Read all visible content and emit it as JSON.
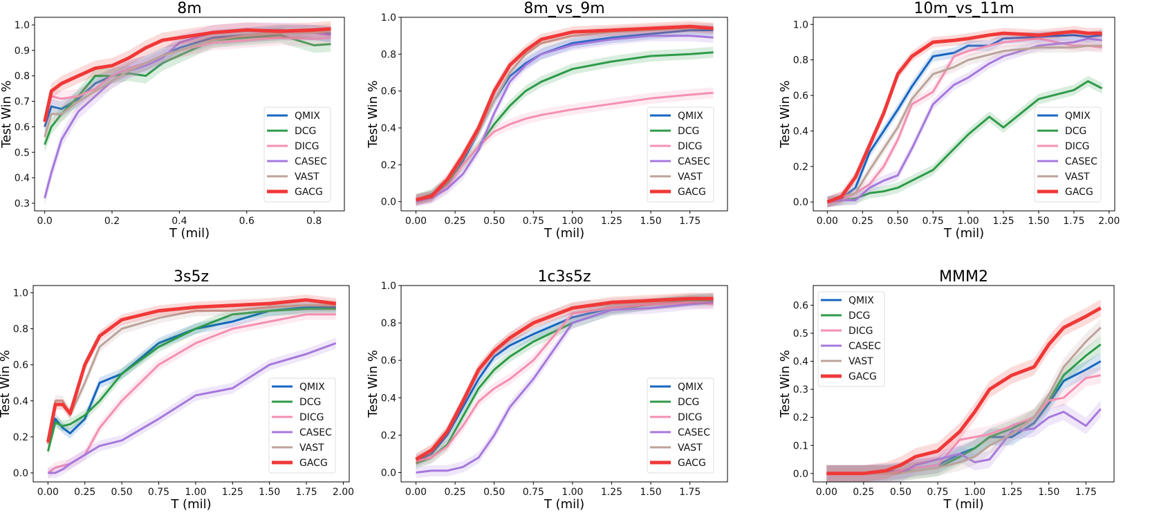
{
  "series_colors": {
    "QMIX": "#1565c0",
    "DCG": "#2e9a48",
    "DICG": "#f48fb1",
    "CASEC": "#a578dc",
    "VAST": "#bca39a",
    "GACG": "#f03838"
  },
  "chart_data": [
    {
      "type": "line",
      "title": "8m",
      "xlabel": "T (mil)",
      "ylabel": "Test Win %",
      "xlim": [
        -0.03,
        0.89
      ],
      "ylim": [
        0.27,
        1.03
      ],
      "xticks": [
        0,
        0.2,
        0.4,
        0.6,
        0.8
      ],
      "xtick_labels": [
        "0.0",
        "0.2",
        "0.4",
        "0.6",
        "0.8"
      ],
      "yticks": [
        0.3,
        0.4,
        0.5,
        0.6,
        0.7,
        0.8,
        0.9,
        1.0
      ],
      "ytick_labels": [
        "0.3",
        "0.4",
        "0.5",
        "0.6",
        "0.7",
        "0.8",
        "0.9",
        "1.0"
      ],
      "legend": "lower-right",
      "x": [
        0,
        0.02,
        0.05,
        0.1,
        0.15,
        0.2,
        0.25,
        0.3,
        0.35,
        0.4,
        0.5,
        0.6,
        0.7,
        0.8,
        0.85
      ],
      "series": [
        {
          "name": "QMIX",
          "values": [
            0.6,
            0.68,
            0.67,
            0.71,
            0.77,
            0.8,
            0.83,
            0.85,
            0.88,
            0.91,
            0.95,
            0.96,
            0.97,
            0.97,
            0.965
          ]
        },
        {
          "name": "DCG",
          "values": [
            0.53,
            0.6,
            0.65,
            0.72,
            0.8,
            0.8,
            0.81,
            0.8,
            0.85,
            0.88,
            0.94,
            0.95,
            0.96,
            0.92,
            0.925
          ]
        },
        {
          "name": "DICG",
          "values": [
            0.62,
            0.72,
            0.71,
            0.72,
            0.75,
            0.8,
            0.83,
            0.85,
            0.88,
            0.9,
            0.93,
            0.94,
            0.95,
            0.945,
            0.95
          ]
        },
        {
          "name": "CASEC",
          "values": [
            0.32,
            0.42,
            0.55,
            0.66,
            0.72,
            0.78,
            0.82,
            0.84,
            0.87,
            0.93,
            0.97,
            0.98,
            0.98,
            0.97,
            0.96
          ]
        },
        {
          "name": "VAST",
          "values": [
            0.56,
            0.65,
            0.65,
            0.7,
            0.74,
            0.78,
            0.82,
            0.85,
            0.88,
            0.9,
            0.94,
            0.96,
            0.97,
            0.97,
            0.975
          ]
        },
        {
          "name": "GACG",
          "values": [
            0.62,
            0.74,
            0.77,
            0.8,
            0.83,
            0.84,
            0.87,
            0.91,
            0.94,
            0.95,
            0.97,
            0.98,
            0.975,
            0.98,
            0.985
          ]
        }
      ]
    },
    {
      "type": "line",
      "title": "8m_vs_9m",
      "xlabel": "T (mil)",
      "ylabel": "Test Win %",
      "xlim": [
        -0.095,
        1.99
      ],
      "ylim": [
        -0.05,
        1.0
      ],
      "xticks": [
        0,
        0.25,
        0.5,
        0.75,
        1.0,
        1.25,
        1.5,
        1.75
      ],
      "xtick_labels": [
        "0.00",
        "0.25",
        "0.50",
        "0.75",
        "1.00",
        "1.25",
        "1.50",
        "1.75"
      ],
      "yticks": [
        0,
        0.2,
        0.4,
        0.6,
        0.8,
        1.0
      ],
      "ytick_labels": [
        "0.0",
        "0.2",
        "0.4",
        "0.6",
        "0.8",
        "1.0"
      ],
      "legend": "lower-right",
      "x": [
        0,
        0.1,
        0.2,
        0.3,
        0.4,
        0.5,
        0.6,
        0.7,
        0.8,
        1.0,
        1.25,
        1.5,
        1.75,
        1.9
      ],
      "series": [
        {
          "name": "QMIX",
          "values": [
            0.01,
            0.03,
            0.1,
            0.22,
            0.38,
            0.55,
            0.68,
            0.75,
            0.8,
            0.86,
            0.89,
            0.91,
            0.93,
            0.93
          ]
        },
        {
          "name": "DCG",
          "values": [
            0.01,
            0.04,
            0.1,
            0.2,
            0.3,
            0.42,
            0.52,
            0.6,
            0.65,
            0.72,
            0.76,
            0.79,
            0.8,
            0.81
          ]
        },
        {
          "name": "DICG",
          "values": [
            0.01,
            0.02,
            0.08,
            0.2,
            0.3,
            0.38,
            0.42,
            0.45,
            0.47,
            0.5,
            0.53,
            0.56,
            0.58,
            0.59
          ]
        },
        {
          "name": "CASEC",
          "values": [
            0.0,
            0.02,
            0.07,
            0.15,
            0.28,
            0.48,
            0.65,
            0.74,
            0.8,
            0.85,
            0.88,
            0.9,
            0.9,
            0.89
          ]
        },
        {
          "name": "VAST",
          "values": [
            0.01,
            0.03,
            0.11,
            0.24,
            0.38,
            0.55,
            0.7,
            0.8,
            0.86,
            0.9,
            0.92,
            0.93,
            0.94,
            0.94
          ]
        },
        {
          "name": "GACG",
          "values": [
            0.01,
            0.03,
            0.12,
            0.25,
            0.4,
            0.6,
            0.74,
            0.82,
            0.88,
            0.92,
            0.93,
            0.94,
            0.95,
            0.94
          ]
        }
      ]
    },
    {
      "type": "line",
      "title": "10m_vs_11m",
      "xlabel": "T (mil)",
      "ylabel": "Test Win %",
      "xlim": [
        -0.1,
        2.04
      ],
      "ylim": [
        -0.05,
        1.04
      ],
      "xticks": [
        0,
        0.25,
        0.5,
        0.75,
        1.0,
        1.25,
        1.5,
        1.75,
        2.0
      ],
      "xtick_labels": [
        "0.00",
        "0.25",
        "0.50",
        "0.75",
        "1.00",
        "1.25",
        "1.50",
        "1.75",
        "2.00"
      ],
      "yticks": [
        0,
        0.2,
        0.4,
        0.6,
        0.8,
        1.0
      ],
      "ytick_labels": [
        "0.0",
        "0.2",
        "0.4",
        "0.6",
        "0.8",
        "1.0"
      ],
      "legend": "lower-right",
      "x": [
        0,
        0.1,
        0.2,
        0.3,
        0.4,
        0.5,
        0.6,
        0.75,
        0.9,
        1.0,
        1.15,
        1.25,
        1.5,
        1.75,
        1.85,
        1.95
      ],
      "series": [
        {
          "name": "QMIX",
          "values": [
            0,
            0.02,
            0.08,
            0.28,
            0.4,
            0.52,
            0.65,
            0.82,
            0.84,
            0.88,
            0.88,
            0.92,
            0.93,
            0.94,
            0.93,
            0.94
          ]
        },
        {
          "name": "DCG",
          "values": [
            0,
            0.01,
            0.02,
            0.05,
            0.06,
            0.08,
            0.12,
            0.18,
            0.3,
            0.38,
            0.48,
            0.42,
            0.58,
            0.63,
            0.68,
            0.64
          ]
        },
        {
          "name": "DICG",
          "values": [
            0,
            0.01,
            0.05,
            0.1,
            0.2,
            0.35,
            0.55,
            0.62,
            0.82,
            0.85,
            0.88,
            0.9,
            0.92,
            0.88,
            0.88,
            0.87
          ]
        },
        {
          "name": "CASEC",
          "values": [
            0,
            0.01,
            0.01,
            0.08,
            0.12,
            0.15,
            0.3,
            0.55,
            0.66,
            0.7,
            0.78,
            0.82,
            0.88,
            0.9,
            0.92,
            0.91
          ]
        },
        {
          "name": "VAST",
          "values": [
            0,
            0.03,
            0.05,
            0.18,
            0.3,
            0.42,
            0.58,
            0.72,
            0.76,
            0.8,
            0.83,
            0.85,
            0.87,
            0.87,
            0.88,
            0.88
          ]
        },
        {
          "name": "GACG",
          "values": [
            0,
            0.03,
            0.14,
            0.32,
            0.5,
            0.72,
            0.82,
            0.9,
            0.91,
            0.92,
            0.94,
            0.95,
            0.94,
            0.96,
            0.95,
            0.95
          ]
        }
      ]
    },
    {
      "type": "line",
      "title": "3s5z",
      "xlabel": "T (mil)",
      "ylabel": "Test Win %",
      "xlim": [
        -0.1,
        2.04
      ],
      "ylim": [
        -0.05,
        1.04
      ],
      "xticks": [
        0,
        0.25,
        0.5,
        0.75,
        1.0,
        1.25,
        1.5,
        1.75,
        2.0
      ],
      "xtick_labels": [
        "0.00",
        "0.25",
        "0.50",
        "0.75",
        "1.00",
        "1.25",
        "1.50",
        "1.75",
        "2.00"
      ],
      "yticks": [
        0,
        0.2,
        0.4,
        0.6,
        0.8,
        1.0
      ],
      "ytick_labels": [
        "0.0",
        "0.2",
        "0.4",
        "0.6",
        "0.8",
        "1.0"
      ],
      "legend": "lower-right",
      "x": [
        0,
        0.05,
        0.1,
        0.15,
        0.25,
        0.35,
        0.5,
        0.75,
        1.0,
        1.25,
        1.5,
        1.75,
        1.95
      ],
      "series": [
        {
          "name": "QMIX",
          "values": [
            0.17,
            0.3,
            0.25,
            0.22,
            0.3,
            0.5,
            0.55,
            0.72,
            0.8,
            0.84,
            0.9,
            0.92,
            0.92
          ]
        },
        {
          "name": "DCG",
          "values": [
            0.12,
            0.28,
            0.26,
            0.27,
            0.32,
            0.4,
            0.55,
            0.7,
            0.8,
            0.88,
            0.9,
            0.91,
            0.91
          ]
        },
        {
          "name": "DICG",
          "values": [
            0.0,
            0.03,
            0.04,
            0.05,
            0.1,
            0.25,
            0.4,
            0.6,
            0.72,
            0.8,
            0.84,
            0.88,
            0.88
          ]
        },
        {
          "name": "CASEC",
          "values": [
            0.0,
            0.0,
            0.02,
            0.05,
            0.1,
            0.15,
            0.18,
            0.3,
            0.43,
            0.47,
            0.6,
            0.66,
            0.72
          ]
        },
        {
          "name": "VAST",
          "values": [
            0.16,
            0.4,
            0.4,
            0.32,
            0.5,
            0.7,
            0.8,
            0.86,
            0.9,
            0.9,
            0.92,
            0.93,
            0.93
          ]
        },
        {
          "name": "GACG",
          "values": [
            0.17,
            0.38,
            0.38,
            0.33,
            0.6,
            0.76,
            0.85,
            0.9,
            0.92,
            0.93,
            0.94,
            0.96,
            0.94
          ]
        }
      ]
    },
    {
      "type": "line",
      "title": "1c3s5z",
      "xlabel": "T (mil)",
      "ylabel": "Test Win %",
      "xlim": [
        -0.095,
        1.99
      ],
      "ylim": [
        -0.05,
        1.0
      ],
      "xticks": [
        0,
        0.25,
        0.5,
        0.75,
        1.0,
        1.25,
        1.5,
        1.75
      ],
      "xtick_labels": [
        "0.00",
        "0.25",
        "0.50",
        "0.75",
        "1.00",
        "1.25",
        "1.50",
        "1.75"
      ],
      "yticks": [
        0,
        0.2,
        0.4,
        0.6,
        0.8,
        1.0
      ],
      "ytick_labels": [
        "0.0",
        "0.2",
        "0.4",
        "0.6",
        "0.8",
        "1.0"
      ],
      "legend": "lower-right",
      "x": [
        0,
        0.1,
        0.2,
        0.3,
        0.4,
        0.5,
        0.6,
        0.75,
        1.0,
        1.25,
        1.5,
        1.75,
        1.9
      ],
      "series": [
        {
          "name": "QMIX",
          "values": [
            0.06,
            0.1,
            0.2,
            0.35,
            0.5,
            0.62,
            0.68,
            0.74,
            0.83,
            0.88,
            0.9,
            0.92,
            0.93
          ]
        },
        {
          "name": "DCG",
          "values": [
            0.05,
            0.08,
            0.15,
            0.3,
            0.45,
            0.55,
            0.62,
            0.7,
            0.8,
            0.87,
            0.9,
            0.92,
            0.92
          ]
        },
        {
          "name": "DICG",
          "values": [
            0.06,
            0.08,
            0.14,
            0.25,
            0.38,
            0.45,
            0.5,
            0.6,
            0.85,
            0.88,
            0.9,
            0.91,
            0.9
          ]
        },
        {
          "name": "CASEC",
          "values": [
            0.0,
            0.01,
            0.01,
            0.03,
            0.08,
            0.2,
            0.35,
            0.5,
            0.8,
            0.87,
            0.88,
            0.9,
            0.91
          ]
        },
        {
          "name": "VAST",
          "values": [
            0.07,
            0.12,
            0.22,
            0.38,
            0.55,
            0.65,
            0.72,
            0.8,
            0.88,
            0.9,
            0.91,
            0.93,
            0.93
          ]
        },
        {
          "name": "GACG",
          "values": [
            0.07,
            0.12,
            0.22,
            0.38,
            0.55,
            0.65,
            0.72,
            0.8,
            0.88,
            0.91,
            0.92,
            0.93,
            0.93
          ]
        }
      ]
    },
    {
      "type": "line",
      "title": "MMM2",
      "xlabel": "T (mil)",
      "ylabel": "Test Win %",
      "xlim": [
        -0.09,
        1.94
      ],
      "ylim": [
        -0.03,
        0.67
      ],
      "xticks": [
        0,
        0.25,
        0.5,
        0.75,
        1.0,
        1.25,
        1.5,
        1.75
      ],
      "xtick_labels": [
        "0.00",
        "0.25",
        "0.50",
        "0.75",
        "1.00",
        "1.25",
        "1.50",
        "1.75"
      ],
      "yticks": [
        0,
        0.1,
        0.2,
        0.3,
        0.4,
        0.5,
        0.6
      ],
      "ytick_labels": [
        "0.0",
        "0.1",
        "0.2",
        "0.3",
        "0.4",
        "0.5",
        "0.6"
      ],
      "legend": "upper-left",
      "x": [
        0,
        0.25,
        0.4,
        0.5,
        0.6,
        0.75,
        0.9,
        1.0,
        1.1,
        1.25,
        1.4,
        1.5,
        1.6,
        1.75,
        1.85
      ],
      "series": [
        {
          "name": "QMIX",
          "values": [
            0,
            0,
            0.005,
            0.01,
            0.02,
            0.03,
            0.07,
            0.09,
            0.13,
            0.13,
            0.18,
            0.25,
            0.33,
            0.37,
            0.4
          ]
        },
        {
          "name": "DCG",
          "values": [
            0,
            0,
            0,
            0.005,
            0.01,
            0.02,
            0.06,
            0.09,
            0.13,
            0.16,
            0.2,
            0.26,
            0.35,
            0.42,
            0.46
          ]
        },
        {
          "name": "DICG",
          "values": [
            0,
            0,
            0,
            0.01,
            0.02,
            0.03,
            0.12,
            0.13,
            0.14,
            0.17,
            0.2,
            0.26,
            0.27,
            0.34,
            0.35
          ]
        },
        {
          "name": "CASEC",
          "values": [
            0,
            0,
            0,
            0,
            0.03,
            0.05,
            0.07,
            0.04,
            0.05,
            0.15,
            0.16,
            0.2,
            0.22,
            0.17,
            0.23
          ]
        },
        {
          "name": "VAST",
          "values": [
            0,
            0,
            0,
            0,
            0.01,
            0.02,
            0.04,
            0.06,
            0.1,
            0.14,
            0.2,
            0.28,
            0.38,
            0.47,
            0.52
          ]
        },
        {
          "name": "GACG",
          "values": [
            0,
            0,
            0.01,
            0.03,
            0.06,
            0.08,
            0.15,
            0.22,
            0.3,
            0.35,
            0.38,
            0.46,
            0.52,
            0.56,
            0.59
          ]
        }
      ]
    }
  ]
}
